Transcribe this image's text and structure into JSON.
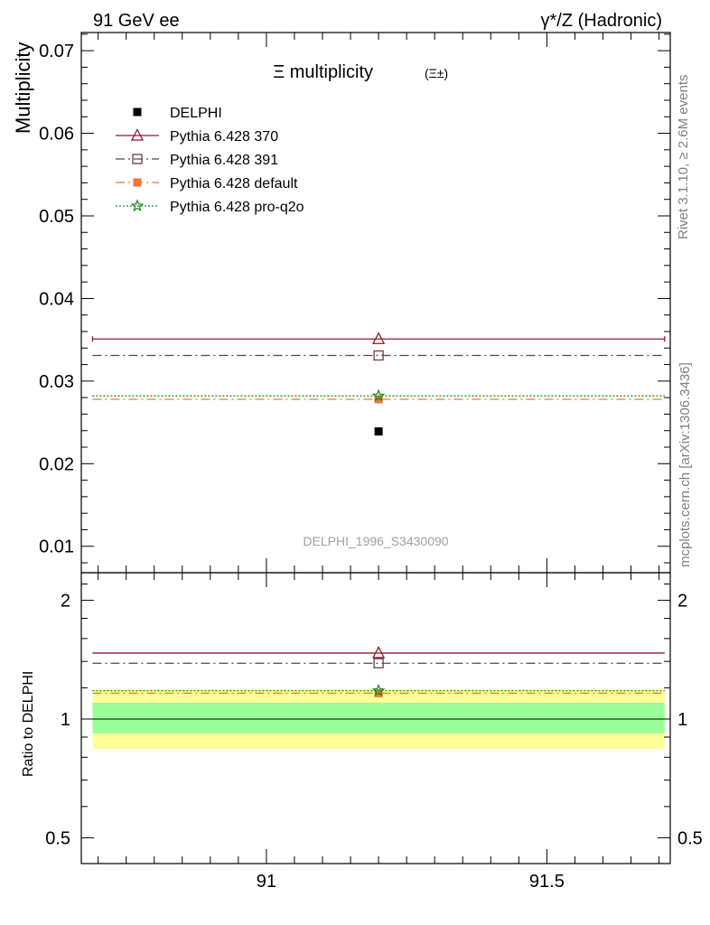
{
  "header": {
    "left_label": "91 GeV ee",
    "right_label": "γ*/Z (Hadronic)",
    "side_label_top": "Rivet 3.1.10, ≥ 2.6M events",
    "side_label_bottom": "mcplots.cern.ch [arXiv:1306.3436]"
  },
  "chart_data": [
    {
      "type": "scatter",
      "title": "Ξ multiplicity",
      "title_suffix": "(Ξ±)",
      "ylabel": "Multiplicity",
      "xlim": [
        90.67,
        91.72
      ],
      "ylim": [
        0.0068,
        0.0722
      ],
      "yticks": [
        0.01,
        0.02,
        0.03,
        0.04,
        0.05,
        0.06,
        0.07
      ],
      "ytick_labels": [
        "0.01",
        "0.02",
        "0.03",
        "0.04",
        "0.05",
        "0.06",
        "0.07"
      ],
      "watermark": "DELPHI_1996_S3430090",
      "legend_position": "top-left",
      "series": [
        {
          "name": "DELPHI",
          "x": [
            91.2
          ],
          "y": [
            0.0239
          ],
          "color": "#000000",
          "marker": "square-filled",
          "line": "none"
        },
        {
          "name": "Pythia 6.428 370",
          "x": [
            91.2
          ],
          "y": [
            0.0351
          ],
          "xrange": [
            90.69,
            91.71
          ],
          "color": "#8b1a2e",
          "marker": "triangle-open",
          "line": "solid"
        },
        {
          "name": "Pythia 6.428 391",
          "x": [
            91.2
          ],
          "y": [
            0.0331
          ],
          "xrange": [
            90.69,
            91.71
          ],
          "color": "#6b3a50",
          "marker": "square-open",
          "line": "dashdot"
        },
        {
          "name": "Pythia 6.428 default",
          "x": [
            91.2
          ],
          "y": [
            0.0278
          ],
          "xrange": [
            90.69,
            91.71
          ],
          "color": "#ee7733",
          "marker": "square-filled",
          "line": "dashdot"
        },
        {
          "name": "Pythia 6.428 pro-q2o",
          "x": [
            91.2
          ],
          "y": [
            0.0282
          ],
          "xrange": [
            90.69,
            91.71
          ],
          "color": "#228b22",
          "marker": "star-open",
          "line": "dotted"
        }
      ]
    },
    {
      "type": "line",
      "ylabel": "Ratio to DELPHI",
      "xlim": [
        90.67,
        91.72
      ],
      "ylim": [
        0.43,
        2.35
      ],
      "ylog": true,
      "xticks": [
        91,
        91.5
      ],
      "xtick_labels": [
        "91",
        "91.5"
      ],
      "yticks": [
        0.5,
        1,
        2
      ],
      "ytick_labels": [
        "0.5",
        "1",
        "2"
      ],
      "bands": [
        {
          "name": "total uncertainty",
          "ylow": 0.84,
          "yhigh": 1.19,
          "xrange": [
            90.69,
            91.71
          ],
          "color": "#ffff99"
        },
        {
          "name": "statistical uncertainty",
          "ylow": 0.92,
          "yhigh": 1.1,
          "xrange": [
            90.69,
            91.71
          ],
          "color": "#99ff99"
        }
      ],
      "series": [
        {
          "ref": "Pythia 6.428 370",
          "x": [
            91.2
          ],
          "y": [
            1.47
          ],
          "color": "#8b1a2e",
          "marker": "triangle-open",
          "line": "solid"
        },
        {
          "ref": "Pythia 6.428 391",
          "x": [
            91.2
          ],
          "y": [
            1.385
          ],
          "color": "#6b3a50",
          "marker": "square-open",
          "line": "dashdot"
        },
        {
          "ref": "Pythia 6.428 default",
          "x": [
            91.2
          ],
          "y": [
            1.163
          ],
          "color": "#ee7733",
          "marker": "square-filled",
          "line": "dashdot"
        },
        {
          "ref": "Pythia 6.428 pro-q2o",
          "x": [
            91.2
          ],
          "y": [
            1.18
          ],
          "color": "#228b22",
          "marker": "star-open",
          "line": "dotted"
        }
      ]
    }
  ]
}
